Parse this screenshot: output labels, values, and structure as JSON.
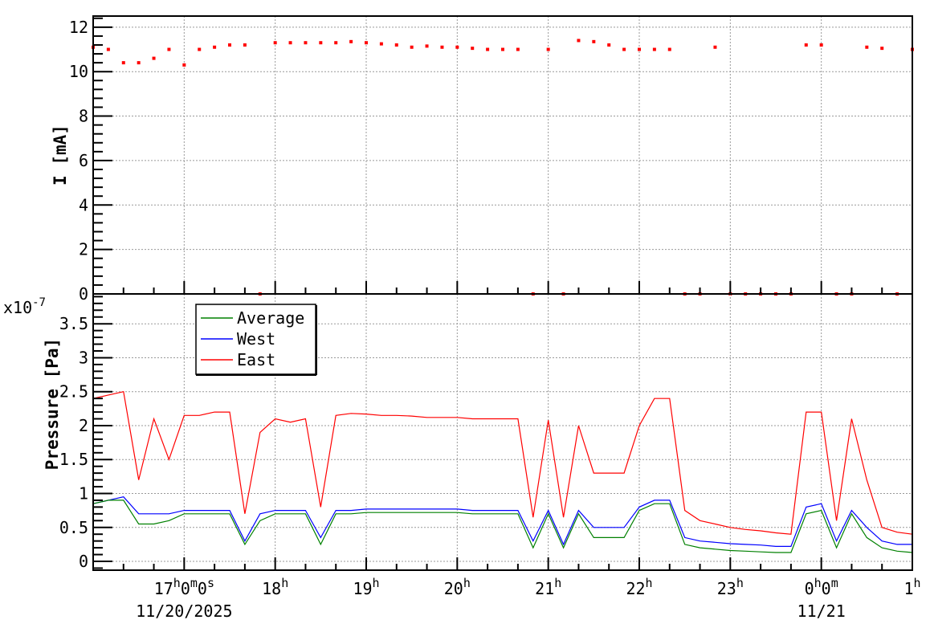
{
  "chart_data": [
    {
      "type": "scatter",
      "panel": "top",
      "ylabel": "I [mA]",
      "ylim": [
        0,
        12.5
      ],
      "yticks": [
        "0",
        "2",
        "4",
        "6",
        "8",
        "10",
        "12"
      ],
      "grid": true,
      "marker_color": "#ff0000",
      "x": [
        "16:00",
        "16:10",
        "16:20",
        "16:30",
        "16:40",
        "16:50",
        "17:00",
        "17:10",
        "17:20",
        "17:30",
        "17:40",
        "17:50",
        "18:00",
        "18:10",
        "18:20",
        "18:30",
        "18:40",
        "18:50",
        "19:00",
        "19:10",
        "19:20",
        "19:30",
        "19:40",
        "19:50",
        "20:00",
        "20:10",
        "20:20",
        "20:30",
        "20:40",
        "20:50",
        "21:00",
        "21:10",
        "21:20",
        "21:30",
        "21:40",
        "21:50",
        "22:00",
        "22:10",
        "22:20",
        "22:30",
        "22:40",
        "22:50",
        "23:00",
        "23:10",
        "23:20",
        "23:30",
        "23:40",
        "23:50",
        "00:00",
        "00:10",
        "00:20",
        "00:30",
        "00:40",
        "00:50",
        "01:00"
      ],
      "values": [
        11.1,
        11.0,
        10.4,
        10.4,
        10.6,
        11.0,
        10.3,
        11.0,
        11.1,
        11.2,
        11.2,
        0,
        11.3,
        11.3,
        11.3,
        11.3,
        11.3,
        11.35,
        11.3,
        11.25,
        11.2,
        11.1,
        11.15,
        11.1,
        11.1,
        11.05,
        11.0,
        11.0,
        11.0,
        0,
        11.0,
        0,
        11.4,
        11.35,
        11.2,
        11.0,
        11.0,
        11.0,
        11.0,
        0,
        0,
        11.1,
        0,
        0,
        0,
        0,
        0,
        11.2,
        11.2,
        0,
        0,
        11.1,
        11.05,
        0,
        11.0
      ]
    },
    {
      "type": "line",
      "panel": "bottom",
      "ylabel": "Pressure [Pa]",
      "yscale_label": "x10",
      "yscale_exp": "-7",
      "ylim": [
        -0.13,
        3.94
      ],
      "yticks": [
        "0",
        "0.5",
        "1",
        "1.5",
        "2",
        "2.5",
        "3",
        "3.5"
      ],
      "grid": true,
      "legend": {
        "placement": "top-left"
      },
      "x": [
        "16:00",
        "16:10",
        "16:20",
        "16:30",
        "16:40",
        "16:50",
        "17:00",
        "17:10",
        "17:20",
        "17:30",
        "17:40",
        "17:50",
        "18:00",
        "18:10",
        "18:20",
        "18:30",
        "18:40",
        "18:50",
        "19:00",
        "19:10",
        "19:20",
        "19:30",
        "19:40",
        "19:50",
        "20:00",
        "20:10",
        "20:20",
        "20:30",
        "20:40",
        "20:50",
        "21:00",
        "21:10",
        "21:20",
        "21:30",
        "21:40",
        "21:50",
        "22:00",
        "22:10",
        "22:20",
        "22:30",
        "22:40",
        "22:50",
        "23:00",
        "23:10",
        "23:20",
        "23:30",
        "23:40",
        "23:50",
        "00:00",
        "00:10",
        "00:20",
        "00:30",
        "00:40",
        "00:50",
        "01:00"
      ],
      "series": [
        {
          "name": "Average",
          "color": "#008000",
          "values": [
            0.85,
            0.9,
            0.9,
            0.55,
            0.55,
            0.6,
            0.7,
            0.7,
            0.7,
            0.7,
            0.25,
            0.6,
            0.7,
            0.7,
            0.7,
            0.25,
            0.7,
            0.7,
            0.72,
            0.72,
            0.72,
            0.72,
            0.72,
            0.72,
            0.72,
            0.7,
            0.7,
            0.7,
            0.7,
            0.2,
            0.7,
            0.2,
            0.7,
            0.35,
            0.35,
            0.35,
            0.75,
            0.85,
            0.85,
            0.25,
            0.2,
            0.18,
            0.16,
            0.15,
            0.14,
            0.13,
            0.13,
            0.7,
            0.75,
            0.2,
            0.7,
            0.35,
            0.2,
            0.15,
            0.13
          ]
        },
        {
          "name": "West",
          "color": "#0000ff",
          "values": [
            0.85,
            0.9,
            0.95,
            0.7,
            0.7,
            0.7,
            0.75,
            0.75,
            0.75,
            0.75,
            0.3,
            0.7,
            0.75,
            0.75,
            0.75,
            0.35,
            0.75,
            0.75,
            0.77,
            0.77,
            0.77,
            0.77,
            0.77,
            0.77,
            0.77,
            0.75,
            0.75,
            0.75,
            0.75,
            0.3,
            0.75,
            0.25,
            0.75,
            0.5,
            0.5,
            0.5,
            0.8,
            0.9,
            0.9,
            0.35,
            0.3,
            0.28,
            0.26,
            0.25,
            0.24,
            0.22,
            0.22,
            0.8,
            0.85,
            0.3,
            0.75,
            0.5,
            0.3,
            0.25,
            0.25
          ]
        },
        {
          "name": "East",
          "color": "#ff0000",
          "values": [
            2.4,
            2.45,
            2.5,
            1.2,
            2.1,
            1.5,
            2.15,
            2.15,
            2.2,
            2.2,
            0.7,
            1.9,
            2.1,
            2.05,
            2.1,
            0.8,
            2.15,
            2.18,
            2.17,
            2.15,
            2.15,
            2.14,
            2.12,
            2.12,
            2.12,
            2.1,
            2.1,
            2.1,
            2.1,
            0.65,
            2.08,
            0.65,
            2.0,
            1.3,
            1.3,
            1.3,
            2.0,
            2.4,
            2.4,
            0.75,
            0.6,
            0.55,
            0.5,
            0.47,
            0.45,
            0.42,
            0.4,
            2.2,
            2.2,
            0.6,
            2.1,
            1.2,
            0.5,
            0.43,
            0.4
          ]
        }
      ]
    }
  ],
  "xaxis": {
    "range": [
      "16:00",
      "01:00"
    ],
    "ticks": [
      {
        "time": "17:00",
        "parts": [
          [
            "17",
            "h"
          ],
          [
            "0",
            "m"
          ],
          [
            "0",
            "s"
          ]
        ],
        "date": "11/20/2025"
      },
      {
        "time": "18:00",
        "parts": [
          [
            "18",
            "h"
          ]
        ]
      },
      {
        "time": "19:00",
        "parts": [
          [
            "19",
            "h"
          ]
        ]
      },
      {
        "time": "20:00",
        "parts": [
          [
            "20",
            "h"
          ]
        ]
      },
      {
        "time": "21:00",
        "parts": [
          [
            "21",
            "h"
          ]
        ]
      },
      {
        "time": "22:00",
        "parts": [
          [
            "22",
            "h"
          ]
        ]
      },
      {
        "time": "23:00",
        "parts": [
          [
            "23",
            "h"
          ]
        ]
      },
      {
        "time": "00:00",
        "parts": [
          [
            "0",
            "h"
          ],
          [
            "0",
            "m"
          ]
        ],
        "date": "11/21"
      },
      {
        "time": "01:00",
        "parts": [
          [
            "1",
            "h"
          ]
        ]
      }
    ]
  }
}
